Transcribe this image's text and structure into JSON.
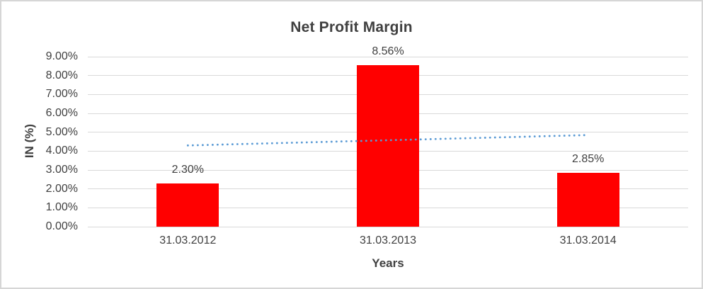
{
  "window": {
    "background": "#FFFFFF",
    "border_color": "#D6D6D6"
  },
  "chart_data": {
    "type": "bar",
    "title": "Net Profit Margin",
    "xlabel": "Years",
    "ylabel": "IN (%)",
    "categories": [
      "31.03.2012",
      "31.03.2013",
      "31.03.2014"
    ],
    "series": [
      {
        "name": "Net Profit Margin",
        "values": [
          2.3,
          8.56,
          2.85
        ]
      }
    ],
    "data_labels": [
      "2.30%",
      "8.56%",
      "2.85%"
    ],
    "ylim": [
      0,
      9
    ],
    "ytick_step": 1,
    "ytick_labels": [
      "0.00%",
      "1.00%",
      "2.00%",
      "3.00%",
      "4.00%",
      "5.00%",
      "6.00%",
      "7.00%",
      "8.00%",
      "9.00%"
    ],
    "grid": true,
    "legend": "none",
    "trendline": {
      "type": "linear",
      "style": "dotted",
      "color": "#5B9BD5",
      "start_value": 4.3,
      "end_value": 4.85
    },
    "colors": {
      "bar": "#FF0000",
      "gridline": "#D9D9D9",
      "axis_text": "#404040",
      "title_text": "#404040"
    }
  }
}
